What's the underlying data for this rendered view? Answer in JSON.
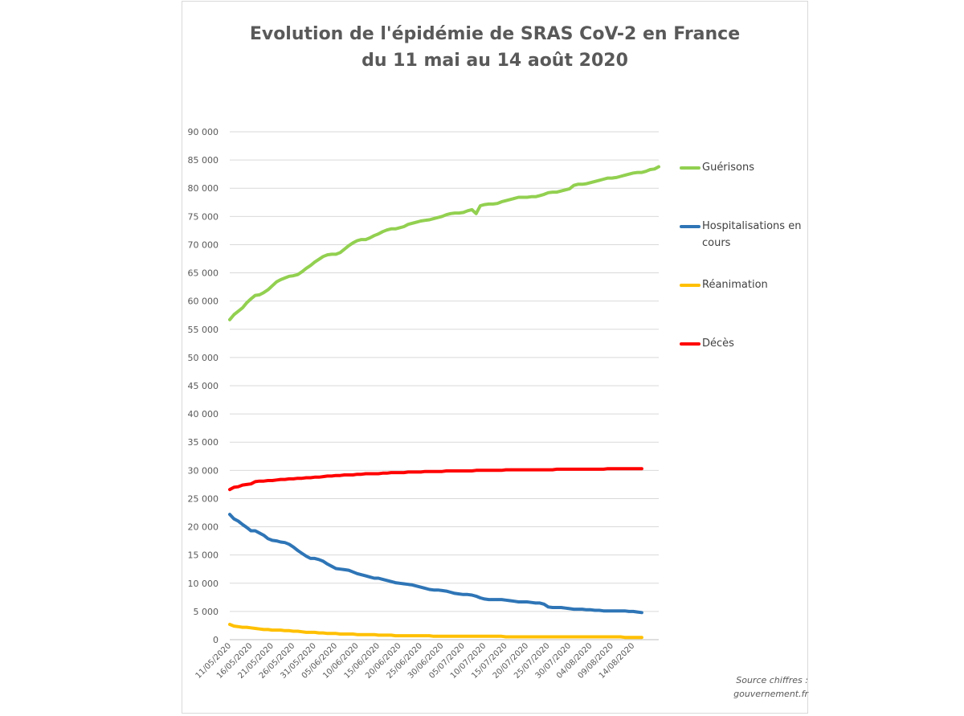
{
  "chart_data": {
    "type": "line",
    "title_lines": [
      "Evolution de l'épidémie de SRAS CoV-2 en France",
      "du 11 mai au 14 août 2020"
    ],
    "xlabel": "",
    "ylabel": "",
    "ylim": [
      0,
      90000
    ],
    "y_ticks": [
      "0",
      "5 000",
      "10 000",
      "15 000",
      "20 000",
      "25 000",
      "30 000",
      "35 000",
      "40 000",
      "45 000",
      "50 000",
      "55 000",
      "60 000",
      "65 000",
      "70 000",
      "75 000",
      "80 000",
      "85 000",
      "90 000"
    ],
    "x_tick_labels": [
      "11/05/2020",
      "16/05/2020",
      "21/05/2020",
      "26/05/2020",
      "31/05/2020",
      "05/06/2020",
      "10/06/2020",
      "15/06/2020",
      "20/06/2020",
      "25/06/2020",
      "30/06/2020",
      "05/07/2020",
      "10/07/2020",
      "15/07/2020",
      "20/07/2020",
      "25/07/2020",
      "30/07/2020",
      "04/08/2020",
      "09/08/2020",
      "14/08/2020"
    ],
    "grid": true,
    "legend_position": "right",
    "series": [
      {
        "name": "Guérisons",
        "color": "#92d050",
        "values": [
          56700,
          57600,
          58200,
          58800,
          59700,
          60400,
          61000,
          61100,
          61500,
          62000,
          62700,
          63400,
          63800,
          64100,
          64400,
          64500,
          64700,
          65200,
          65800,
          66300,
          66900,
          67400,
          67900,
          68200,
          68300,
          68300,
          68600,
          69200,
          69800,
          70300,
          70700,
          70900,
          70900,
          71200,
          71600,
          71900,
          72300,
          72600,
          72800,
          72800,
          73000,
          73200,
          73600,
          73800,
          74000,
          74200,
          74300,
          74400,
          74600,
          74800,
          75000,
          75300,
          75500,
          75600,
          75600,
          75700,
          76000,
          76200,
          75500,
          76900,
          77100,
          77200,
          77200,
          77300,
          77600,
          77800,
          78000,
          78200,
          78400,
          78400,
          78400,
          78500,
          78500,
          78700,
          78900,
          79200,
          79300,
          79300,
          79500,
          79700,
          79900,
          80500,
          80700,
          80700,
          80800,
          81000,
          81200,
          81400,
          81600,
          81800,
          81800,
          81900,
          82100,
          82300,
          82500,
          82700,
          82800,
          82800,
          83000,
          83300,
          83400,
          83800
        ]
      },
      {
        "name": "Hospitalisations en cours",
        "color": "#2e75b6",
        "values": [
          22200,
          21400,
          21000,
          20400,
          19900,
          19300,
          19300,
          18900,
          18500,
          17900,
          17600,
          17500,
          17300,
          17200,
          16900,
          16400,
          15800,
          15300,
          14800,
          14400,
          14400,
          14200,
          13900,
          13400,
          13000,
          12600,
          12500,
          12400,
          12300,
          12000,
          11700,
          11500,
          11300,
          11100,
          10900,
          10900,
          10700,
          10500,
          10300,
          10100,
          10000,
          9900,
          9800,
          9700,
          9500,
          9300,
          9100,
          8900,
          8800,
          8800,
          8700,
          8600,
          8400,
          8200,
          8100,
          8000,
          8000,
          7900,
          7700,
          7400,
          7200,
          7100,
          7100,
          7100,
          7100,
          7000,
          6900,
          6800,
          6700,
          6700,
          6700,
          6600,
          6500,
          6500,
          6300,
          5800,
          5700,
          5700,
          5700,
          5600,
          5500,
          5400,
          5400,
          5400,
          5300,
          5300,
          5200,
          5200,
          5100,
          5100,
          5100,
          5100,
          5100,
          5100,
          5000,
          5000,
          4900,
          4800
        ]
      },
      {
        "name": "Réanimation",
        "color": "#ffc000",
        "values": [
          2700,
          2400,
          2300,
          2200,
          2200,
          2100,
          2000,
          1900,
          1800,
          1800,
          1700,
          1700,
          1700,
          1600,
          1600,
          1500,
          1500,
          1400,
          1300,
          1300,
          1300,
          1200,
          1200,
          1100,
          1100,
          1100,
          1000,
          1000,
          1000,
          1000,
          900,
          900,
          900,
          900,
          900,
          800,
          800,
          800,
          800,
          700,
          700,
          700,
          700,
          700,
          700,
          700,
          700,
          700,
          600,
          600,
          600,
          600,
          600,
          600,
          600,
          600,
          600,
          600,
          600,
          600,
          600,
          600,
          600,
          600,
          600,
          500,
          500,
          500,
          500,
          500,
          500,
          500,
          500,
          500,
          500,
          500,
          500,
          500,
          500,
          500,
          500,
          500,
          500,
          500,
          500,
          500,
          500,
          500,
          500,
          500,
          500,
          500,
          500,
          400,
          400,
          400,
          400,
          400
        ]
      },
      {
        "name": "Décès",
        "color": "#ff0000",
        "values": [
          26600,
          27000,
          27100,
          27400,
          27500,
          27600,
          28000,
          28100,
          28100,
          28200,
          28200,
          28300,
          28400,
          28400,
          28500,
          28500,
          28600,
          28600,
          28700,
          28700,
          28800,
          28800,
          28900,
          29000,
          29000,
          29100,
          29100,
          29200,
          29200,
          29200,
          29300,
          29300,
          29400,
          29400,
          29400,
          29400,
          29500,
          29500,
          29600,
          29600,
          29600,
          29600,
          29700,
          29700,
          29700,
          29700,
          29800,
          29800,
          29800,
          29800,
          29800,
          29900,
          29900,
          29900,
          29900,
          29900,
          29900,
          29900,
          30000,
          30000,
          30000,
          30000,
          30000,
          30000,
          30000,
          30100,
          30100,
          30100,
          30100,
          30100,
          30100,
          30100,
          30100,
          30100,
          30100,
          30100,
          30100,
          30200,
          30200,
          30200,
          30200,
          30200,
          30200,
          30200,
          30200,
          30200,
          30200,
          30200,
          30200,
          30300,
          30300,
          30300,
          30300,
          30300,
          30300,
          30300,
          30300,
          30300
        ]
      }
    ]
  },
  "source": {
    "line1": "Source chiffres :",
    "line2": "gouvernement.fr"
  }
}
